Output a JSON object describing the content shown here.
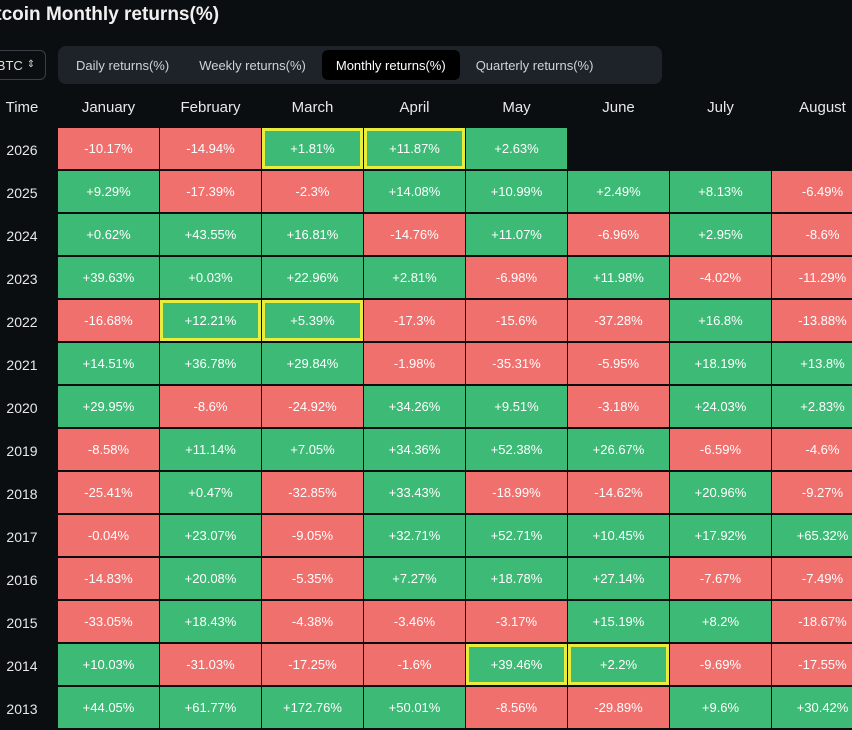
{
  "title": "itcoin Monthly returns(%)",
  "asset": "BTC",
  "tabs": [
    {
      "label": "Daily returns(%)",
      "active": false
    },
    {
      "label": "Weekly returns(%)",
      "active": false
    },
    {
      "label": "Monthly returns(%)",
      "active": true
    },
    {
      "label": "Quarterly returns(%)",
      "active": false
    }
  ],
  "colors": {
    "positive": "#3dba76",
    "negative": "#f0706e",
    "highlight": "#e8ec3c"
  },
  "header": {
    "time": "Time",
    "months": [
      "January",
      "February",
      "March",
      "April",
      "May",
      "June",
      "July",
      "August"
    ]
  },
  "rows": [
    {
      "year": "2026",
      "values": [
        "-10.17%",
        "-14.94%",
        "+1.81%",
        "+11.87%",
        "+2.63%",
        "",
        "",
        ""
      ],
      "highlight": [
        false,
        false,
        true,
        true,
        false,
        false,
        false,
        false
      ]
    },
    {
      "year": "2025",
      "values": [
        "+9.29%",
        "-17.39%",
        "-2.3%",
        "+14.08%",
        "+10.99%",
        "+2.49%",
        "+8.13%",
        "-6.49%"
      ],
      "highlight": [
        false,
        false,
        false,
        false,
        false,
        false,
        false,
        false
      ]
    },
    {
      "year": "2024",
      "values": [
        "+0.62%",
        "+43.55%",
        "+16.81%",
        "-14.76%",
        "+11.07%",
        "-6.96%",
        "+2.95%",
        "-8.6%"
      ],
      "highlight": [
        false,
        false,
        false,
        false,
        false,
        false,
        false,
        false
      ]
    },
    {
      "year": "2023",
      "values": [
        "+39.63%",
        "+0.03%",
        "+22.96%",
        "+2.81%",
        "-6.98%",
        "+11.98%",
        "-4.02%",
        "-11.29%"
      ],
      "highlight": [
        false,
        false,
        false,
        false,
        false,
        false,
        false,
        false
      ]
    },
    {
      "year": "2022",
      "values": [
        "-16.68%",
        "+12.21%",
        "+5.39%",
        "-17.3%",
        "-15.6%",
        "-37.28%",
        "+16.8%",
        "-13.88%"
      ],
      "highlight": [
        false,
        true,
        true,
        false,
        false,
        false,
        false,
        false
      ]
    },
    {
      "year": "2021",
      "values": [
        "+14.51%",
        "+36.78%",
        "+29.84%",
        "-1.98%",
        "-35.31%",
        "-5.95%",
        "+18.19%",
        "+13.8%"
      ],
      "highlight": [
        false,
        false,
        false,
        false,
        false,
        false,
        false,
        false
      ]
    },
    {
      "year": "2020",
      "values": [
        "+29.95%",
        "-8.6%",
        "-24.92%",
        "+34.26%",
        "+9.51%",
        "-3.18%",
        "+24.03%",
        "+2.83%"
      ],
      "highlight": [
        false,
        false,
        false,
        false,
        false,
        false,
        false,
        false
      ]
    },
    {
      "year": "2019",
      "values": [
        "-8.58%",
        "+11.14%",
        "+7.05%",
        "+34.36%",
        "+52.38%",
        "+26.67%",
        "-6.59%",
        "-4.6%"
      ],
      "highlight": [
        false,
        false,
        false,
        false,
        false,
        false,
        false,
        false
      ]
    },
    {
      "year": "2018",
      "values": [
        "-25.41%",
        "+0.47%",
        "-32.85%",
        "+33.43%",
        "-18.99%",
        "-14.62%",
        "+20.96%",
        "-9.27%"
      ],
      "highlight": [
        false,
        false,
        false,
        false,
        false,
        false,
        false,
        false
      ]
    },
    {
      "year": "2017",
      "values": [
        "-0.04%",
        "+23.07%",
        "-9.05%",
        "+32.71%",
        "+52.71%",
        "+10.45%",
        "+17.92%",
        "+65.32%"
      ],
      "highlight": [
        false,
        false,
        false,
        false,
        false,
        false,
        false,
        false
      ]
    },
    {
      "year": "2016",
      "values": [
        "-14.83%",
        "+20.08%",
        "-5.35%",
        "+7.27%",
        "+18.78%",
        "+27.14%",
        "-7.67%",
        "-7.49%"
      ],
      "highlight": [
        false,
        false,
        false,
        false,
        false,
        false,
        false,
        false
      ]
    },
    {
      "year": "2015",
      "values": [
        "-33.05%",
        "+18.43%",
        "-4.38%",
        "-3.46%",
        "-3.17%",
        "+15.19%",
        "+8.2%",
        "-18.67%"
      ],
      "highlight": [
        false,
        false,
        false,
        false,
        false,
        false,
        false,
        false
      ]
    },
    {
      "year": "2014",
      "values": [
        "+10.03%",
        "-31.03%",
        "-17.25%",
        "-1.6%",
        "+39.46%",
        "+2.2%",
        "-9.69%",
        "-17.55%"
      ],
      "highlight": [
        false,
        false,
        false,
        false,
        true,
        true,
        false,
        false
      ]
    },
    {
      "year": "2013",
      "values": [
        "+44.05%",
        "+61.77%",
        "+172.76%",
        "+50.01%",
        "-8.56%",
        "-29.89%",
        "+9.6%",
        "+30.42%"
      ],
      "highlight": [
        false,
        false,
        false,
        false,
        false,
        false,
        false,
        false
      ]
    }
  ]
}
